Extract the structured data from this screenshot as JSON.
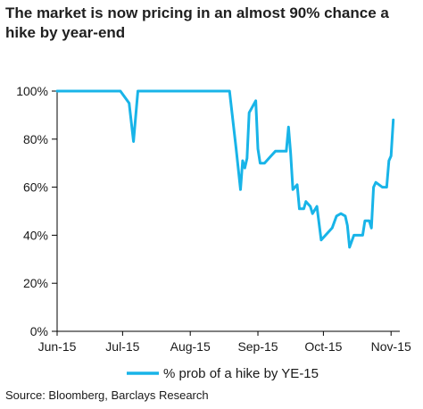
{
  "title": "The market is now pricing in an almost 90% chance  a hike by year-end",
  "source": "Source: Bloomberg, Barclays Research",
  "chart_data": {
    "type": "line",
    "title": "The market is now pricing in an almost 90% chance  a hike by year-end",
    "xlabel": "",
    "ylabel": "",
    "x_tick_labels": [
      "Jun-15",
      "Jul-15",
      "Aug-15",
      "Sep-15",
      "Oct-15",
      "Nov-15"
    ],
    "y_tick_labels": [
      "0%",
      "20%",
      "40%",
      "60%",
      "80%",
      "100%"
    ],
    "ylim": [
      0,
      100
    ],
    "grid": false,
    "legend_position": "bottom",
    "color": "#18b4e8",
    "series": [
      {
        "name": "% prob of a hike by YE-15",
        "points": [
          [
            "2015-06-01",
            100
          ],
          [
            "2015-06-30",
            100
          ],
          [
            "2015-07-04",
            95
          ],
          [
            "2015-07-06",
            79
          ],
          [
            "2015-07-08",
            100
          ],
          [
            "2015-08-19",
            100
          ],
          [
            "2015-08-22",
            76
          ],
          [
            "2015-08-24",
            59
          ],
          [
            "2015-08-25",
            71
          ],
          [
            "2015-08-26",
            68
          ],
          [
            "2015-08-27",
            72
          ],
          [
            "2015-08-28",
            91
          ],
          [
            "2015-08-31",
            96
          ],
          [
            "2015-09-01",
            76
          ],
          [
            "2015-09-02",
            70
          ],
          [
            "2015-09-04",
            70
          ],
          [
            "2015-09-07",
            73
          ],
          [
            "2015-09-09",
            75
          ],
          [
            "2015-09-14",
            75
          ],
          [
            "2015-09-15",
            85
          ],
          [
            "2015-09-16",
            74
          ],
          [
            "2015-09-17",
            59
          ],
          [
            "2015-09-19",
            61
          ],
          [
            "2015-09-20",
            51
          ],
          [
            "2015-09-22",
            51
          ],
          [
            "2015-09-23",
            54
          ],
          [
            "2015-09-25",
            52
          ],
          [
            "2015-09-26",
            49
          ],
          [
            "2015-09-28",
            52
          ],
          [
            "2015-09-30",
            38
          ],
          [
            "2015-10-02",
            40
          ],
          [
            "2015-10-05",
            43
          ],
          [
            "2015-10-07",
            48
          ],
          [
            "2015-10-09",
            49
          ],
          [
            "2015-10-11",
            48
          ],
          [
            "2015-10-12",
            44
          ],
          [
            "2015-10-13",
            35
          ],
          [
            "2015-10-15",
            40
          ],
          [
            "2015-10-19",
            40
          ],
          [
            "2015-10-20",
            46
          ],
          [
            "2015-10-22",
            46
          ],
          [
            "2015-10-23",
            43
          ],
          [
            "2015-10-24",
            60
          ],
          [
            "2015-10-25",
            62
          ],
          [
            "2015-10-28",
            60
          ],
          [
            "2015-10-30",
            60
          ],
          [
            "2015-10-31",
            71
          ],
          [
            "2015-11-01",
            73
          ],
          [
            "2015-11-02",
            88
          ]
        ]
      }
    ]
  }
}
